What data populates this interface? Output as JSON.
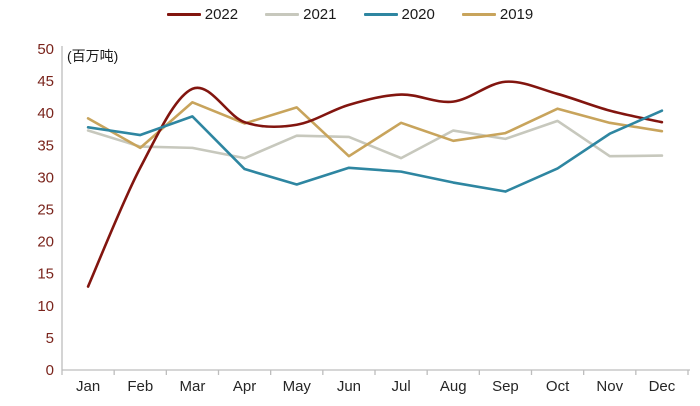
{
  "chart_data": {
    "type": "line",
    "title": "",
    "unit_label": "(百万吨)",
    "xlabel": "",
    "ylabel": "百万吨",
    "ylim": [
      0,
      50
    ],
    "y_ticks": [
      0,
      5,
      10,
      15,
      20,
      25,
      30,
      35,
      40,
      45,
      50
    ],
    "grid": false,
    "legend_position": "top",
    "categories": [
      "Jan",
      "Feb",
      "Mar",
      "Apr",
      "May",
      "Jun",
      "Jul",
      "Aug",
      "Sep",
      "Oct",
      "Nov",
      "Dec"
    ],
    "series": [
      {
        "name": "2022",
        "color": "#82150F",
        "smooth": true,
        "values": [
          13,
          31.5,
          43.8,
          38.6,
          38.2,
          41.3,
          42.9,
          41.8,
          44.9,
          43.0,
          40.4,
          38.6
        ]
      },
      {
        "name": "2021",
        "color": "#C7C8BD",
        "smooth": false,
        "values": [
          37.3,
          34.8,
          34.6,
          33.0,
          36.5,
          36.3,
          33.0,
          37.3,
          36.0,
          38.8,
          33.3,
          33.4
        ]
      },
      {
        "name": "2020",
        "color": "#2E86A1",
        "smooth": false,
        "values": [
          37.8,
          36.6,
          39.5,
          31.3,
          28.9,
          31.5,
          30.9,
          29.2,
          27.8,
          31.4,
          36.8,
          40.4
        ]
      },
      {
        "name": "2019",
        "color": "#C8A45C",
        "smooth": false,
        "values": [
          39.2,
          34.6,
          41.7,
          38.4,
          40.9,
          33.3,
          38.5,
          35.7,
          36.9,
          40.7,
          38.5,
          37.2
        ]
      }
    ],
    "colors": {
      "axis_line": "#BDBDBD",
      "y_tick_label": "#7A241C",
      "x_tick_label": "#262626"
    }
  },
  "legend": {
    "items": [
      "2022",
      "2021",
      "2020",
      "2019"
    ]
  }
}
